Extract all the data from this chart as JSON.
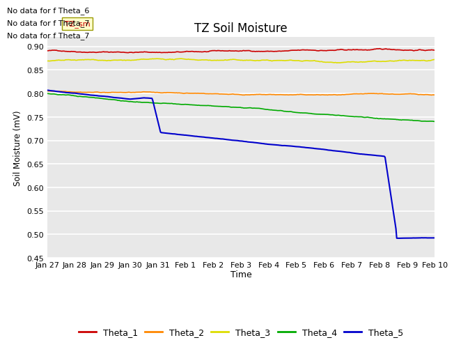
{
  "title": "TZ Soil Moisture",
  "ylabel": "Soil Moisture (mV)",
  "xlabel": "Time",
  "ylim": [
    0.45,
    0.92
  ],
  "yticks": [
    0.45,
    0.5,
    0.55,
    0.6,
    0.65,
    0.7,
    0.75,
    0.8,
    0.85,
    0.9
  ],
  "date_labels": [
    "Jan 27",
    "Jan 28",
    "Jan 29",
    "Jan 30",
    "Jan 31",
    "Feb 1",
    "Feb 2",
    "Feb 3",
    "Feb 4",
    "Feb 5",
    "Feb 6",
    "Feb 7",
    "Feb 8",
    "Feb 9",
    "Feb 10"
  ],
  "no_data_texts": [
    "No data for f Theta_6",
    "No data for f Theta_7",
    "No data for f Theta_7"
  ],
  "tooltip_text": "TZ_sm",
  "bg_color": "#ffffff",
  "plot_bg_color": "#e8e8e8",
  "grid_color": "#ffffff",
  "colors": {
    "Theta_1": "#cc0000",
    "Theta_2": "#ff8800",
    "Theta_3": "#dddd00",
    "Theta_4": "#00aa00",
    "Theta_5": "#0000cc"
  },
  "legend_labels": [
    "Theta_1",
    "Theta_2",
    "Theta_3",
    "Theta_4",
    "Theta_5"
  ]
}
